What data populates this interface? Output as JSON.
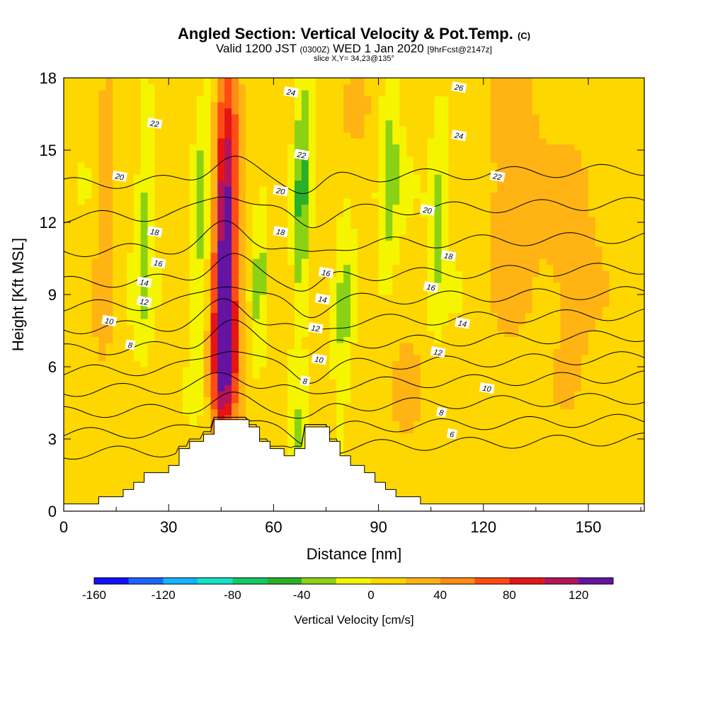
{
  "chart_data": {
    "type": "heatmap",
    "title": "Angled Section: Vertical Velocity & Pot.Temp.",
    "title_tag": "(C)",
    "subtitle_main": "Valid 1200 JST",
    "subtitle_utc": "(0300Z)",
    "subtitle_date": "WED 1 Jan 2020",
    "subtitle_fcst": "[9hrFcst@2147z]",
    "slice_label": "slice X,Y= 34,23@135°",
    "xlabel": "Distance [nm]",
    "ylabel": "Height [Kft MSL]",
    "xlim": [
      0,
      166
    ],
    "ylim": [
      0,
      18
    ],
    "x_ticks": [
      0,
      30,
      60,
      90,
      120,
      150
    ],
    "y_ticks": [
      0,
      3,
      6,
      9,
      12,
      15,
      18
    ],
    "colorbar": {
      "label": "Vertical Velocity [cm/s]",
      "tick_values": [
        -160,
        -120,
        -80,
        -40,
        0,
        40,
        80,
        120
      ],
      "tick_labels": [
        "-160",
        "-120",
        "-80",
        "-40",
        "0",
        "40",
        "80",
        "120"
      ],
      "range": [
        -160,
        140
      ],
      "step": 20,
      "colors": [
        "#1410ff",
        "#1c64ff",
        "#14b4ff",
        "#14e0c8",
        "#14c864",
        "#28b028",
        "#8cd214",
        "#f5f500",
        "#ffd700",
        "#ffb414",
        "#ff8c14",
        "#ff4b14",
        "#e61414",
        "#b4145a",
        "#6414a0"
      ]
    },
    "terrain_profile": [
      {
        "x": 0,
        "h": 0.3
      },
      {
        "x": 10,
        "h": 0.3
      },
      {
        "x": 10,
        "h": 0.6
      },
      {
        "x": 17,
        "h": 0.6
      },
      {
        "x": 17,
        "h": 0.9
      },
      {
        "x": 20,
        "h": 0.9
      },
      {
        "x": 20,
        "h": 1.2
      },
      {
        "x": 23,
        "h": 1.2
      },
      {
        "x": 23,
        "h": 1.6
      },
      {
        "x": 30,
        "h": 1.6
      },
      {
        "x": 30,
        "h": 1.9
      },
      {
        "x": 33,
        "h": 1.9
      },
      {
        "x": 33,
        "h": 2.6
      },
      {
        "x": 36,
        "h": 2.6
      },
      {
        "x": 36,
        "h": 2.9
      },
      {
        "x": 40,
        "h": 2.9
      },
      {
        "x": 40,
        "h": 3.2
      },
      {
        "x": 43,
        "h": 3.2
      },
      {
        "x": 43,
        "h": 3.8
      },
      {
        "x": 53,
        "h": 3.8
      },
      {
        "x": 53,
        "h": 3.5
      },
      {
        "x": 56,
        "h": 3.5
      },
      {
        "x": 56,
        "h": 2.9
      },
      {
        "x": 59,
        "h": 2.9
      },
      {
        "x": 59,
        "h": 2.6
      },
      {
        "x": 63,
        "h": 2.6
      },
      {
        "x": 63,
        "h": 2.3
      },
      {
        "x": 66,
        "h": 2.3
      },
      {
        "x": 66,
        "h": 2.6
      },
      {
        "x": 69,
        "h": 2.6
      },
      {
        "x": 69,
        "h": 3.5
      },
      {
        "x": 76,
        "h": 3.5
      },
      {
        "x": 76,
        "h": 2.9
      },
      {
        "x": 79,
        "h": 2.9
      },
      {
        "x": 79,
        "h": 2.3
      },
      {
        "x": 82,
        "h": 2.3
      },
      {
        "x": 82,
        "h": 1.9
      },
      {
        "x": 86,
        "h": 1.9
      },
      {
        "x": 86,
        "h": 1.6
      },
      {
        "x": 89,
        "h": 1.6
      },
      {
        "x": 89,
        "h": 1.2
      },
      {
        "x": 92,
        "h": 1.2
      },
      {
        "x": 92,
        "h": 0.9
      },
      {
        "x": 95,
        "h": 0.9
      },
      {
        "x": 95,
        "h": 0.6
      },
      {
        "x": 102,
        "h": 0.6
      },
      {
        "x": 102,
        "h": 0.3
      },
      {
        "x": 166,
        "h": 0.3
      }
    ],
    "velocity_features": [
      {
        "x": 46,
        "z": 11,
        "wx": 3.5,
        "wz": 8,
        "value": 120
      },
      {
        "x": 47,
        "z": 6.5,
        "wx": 4,
        "wz": 3,
        "value": 70
      },
      {
        "x": 12,
        "z": 12,
        "wx": 3,
        "wz": 6,
        "value": 30
      },
      {
        "x": 40,
        "z": 13,
        "wx": 3,
        "wz": 6,
        "value": -40
      },
      {
        "x": 23,
        "z": 11.5,
        "wx": 2.5,
        "wz": 5,
        "value": -35
      },
      {
        "x": 68,
        "z": 13,
        "wx": 2.5,
        "wz": 6,
        "value": -55
      },
      {
        "x": 56,
        "z": 10,
        "wx": 2.5,
        "wz": 4,
        "value": -35
      },
      {
        "x": 93,
        "z": 14,
        "wx": 3,
        "wz": 5,
        "value": -35
      },
      {
        "x": 107,
        "z": 12,
        "wx": 2.5,
        "wz": 4,
        "value": -35
      },
      {
        "x": 80,
        "z": 8,
        "wx": 3,
        "wz": 5,
        "value": -35
      },
      {
        "x": 67,
        "z": 3,
        "wx": 2,
        "wz": 1.5,
        "value": -30
      },
      {
        "x": 83,
        "z": 17,
        "wx": 6,
        "wz": 2,
        "value": 30
      },
      {
        "x": 128,
        "z": 12,
        "wx": 8,
        "wz": 6,
        "value": 25
      },
      {
        "x": 145,
        "z": 9,
        "wx": 8,
        "wz": 6,
        "value": 20
      },
      {
        "x": 98,
        "z": 5,
        "wx": 5,
        "wz": 2,
        "value": 25
      },
      {
        "x": 118,
        "z": 2,
        "wx": 6,
        "wz": 2,
        "value": -10
      }
    ],
    "theta_contours": [
      {
        "value": 4,
        "base": 2.4,
        "label_x": null
      },
      {
        "value": 6,
        "base": 3.2,
        "label_x": 111
      },
      {
        "value": 8,
        "base": 4.1,
        "label_x": 108
      },
      {
        "value": 10,
        "base": 5.0,
        "label_x": 121
      },
      {
        "value": 12,
        "base": 5.8,
        "label_x": 107
      },
      {
        "value": 14,
        "base": 6.7,
        "label_x": 114
      },
      {
        "value": 16,
        "base": 7.6,
        "label_x": 105
      },
      {
        "value": 18,
        "base": 8.5,
        "label_x": 110
      },
      {
        "value": 20,
        "base": 9.5,
        "label_x": 104
      },
      {
        "value": 22,
        "base": 10.8,
        "label_x": 124
      },
      {
        "value": 24,
        "base": 12.2,
        "label_x": 114
      },
      {
        "value": 26,
        "base": 13.6,
        "label_x": 114
      }
    ],
    "contour_labels": [
      {
        "text": "26",
        "x": 113,
        "z": 17.6
      },
      {
        "text": "24",
        "x": 113,
        "z": 15.6
      },
      {
        "text": "22",
        "x": 124,
        "z": 13.9
      },
      {
        "text": "20",
        "x": 104,
        "z": 12.5
      },
      {
        "text": "18",
        "x": 110,
        "z": 10.6
      },
      {
        "text": "16",
        "x": 105,
        "z": 9.3
      },
      {
        "text": "14",
        "x": 114,
        "z": 7.8
      },
      {
        "text": "12",
        "x": 107,
        "z": 6.6
      },
      {
        "text": "10",
        "x": 121,
        "z": 5.1
      },
      {
        "text": "8",
        "x": 108,
        "z": 4.1
      },
      {
        "text": "6",
        "x": 111,
        "z": 3.2
      },
      {
        "text": "24",
        "x": 65,
        "z": 17.4
      },
      {
        "text": "22",
        "x": 68,
        "z": 14.8
      },
      {
        "text": "20",
        "x": 62,
        "z": 13.3
      },
      {
        "text": "18",
        "x": 62,
        "z": 11.6
      },
      {
        "text": "16",
        "x": 75,
        "z": 9.9
      },
      {
        "text": "14",
        "x": 74,
        "z": 8.8
      },
      {
        "text": "12",
        "x": 72,
        "z": 7.6
      },
      {
        "text": "10",
        "x": 73,
        "z": 6.3
      },
      {
        "text": "8",
        "x": 69,
        "z": 5.4
      },
      {
        "text": "22",
        "x": 26,
        "z": 16.1
      },
      {
        "text": "20",
        "x": 16,
        "z": 13.9
      },
      {
        "text": "18",
        "x": 26,
        "z": 11.6
      },
      {
        "text": "16",
        "x": 27,
        "z": 10.3
      },
      {
        "text": "14",
        "x": 23,
        "z": 9.5
      },
      {
        "text": "12",
        "x": 23,
        "z": 8.7
      },
      {
        "text": "10",
        "x": 13,
        "z": 7.9
      },
      {
        "text": "8",
        "x": 19,
        "z": 6.9
      }
    ]
  }
}
